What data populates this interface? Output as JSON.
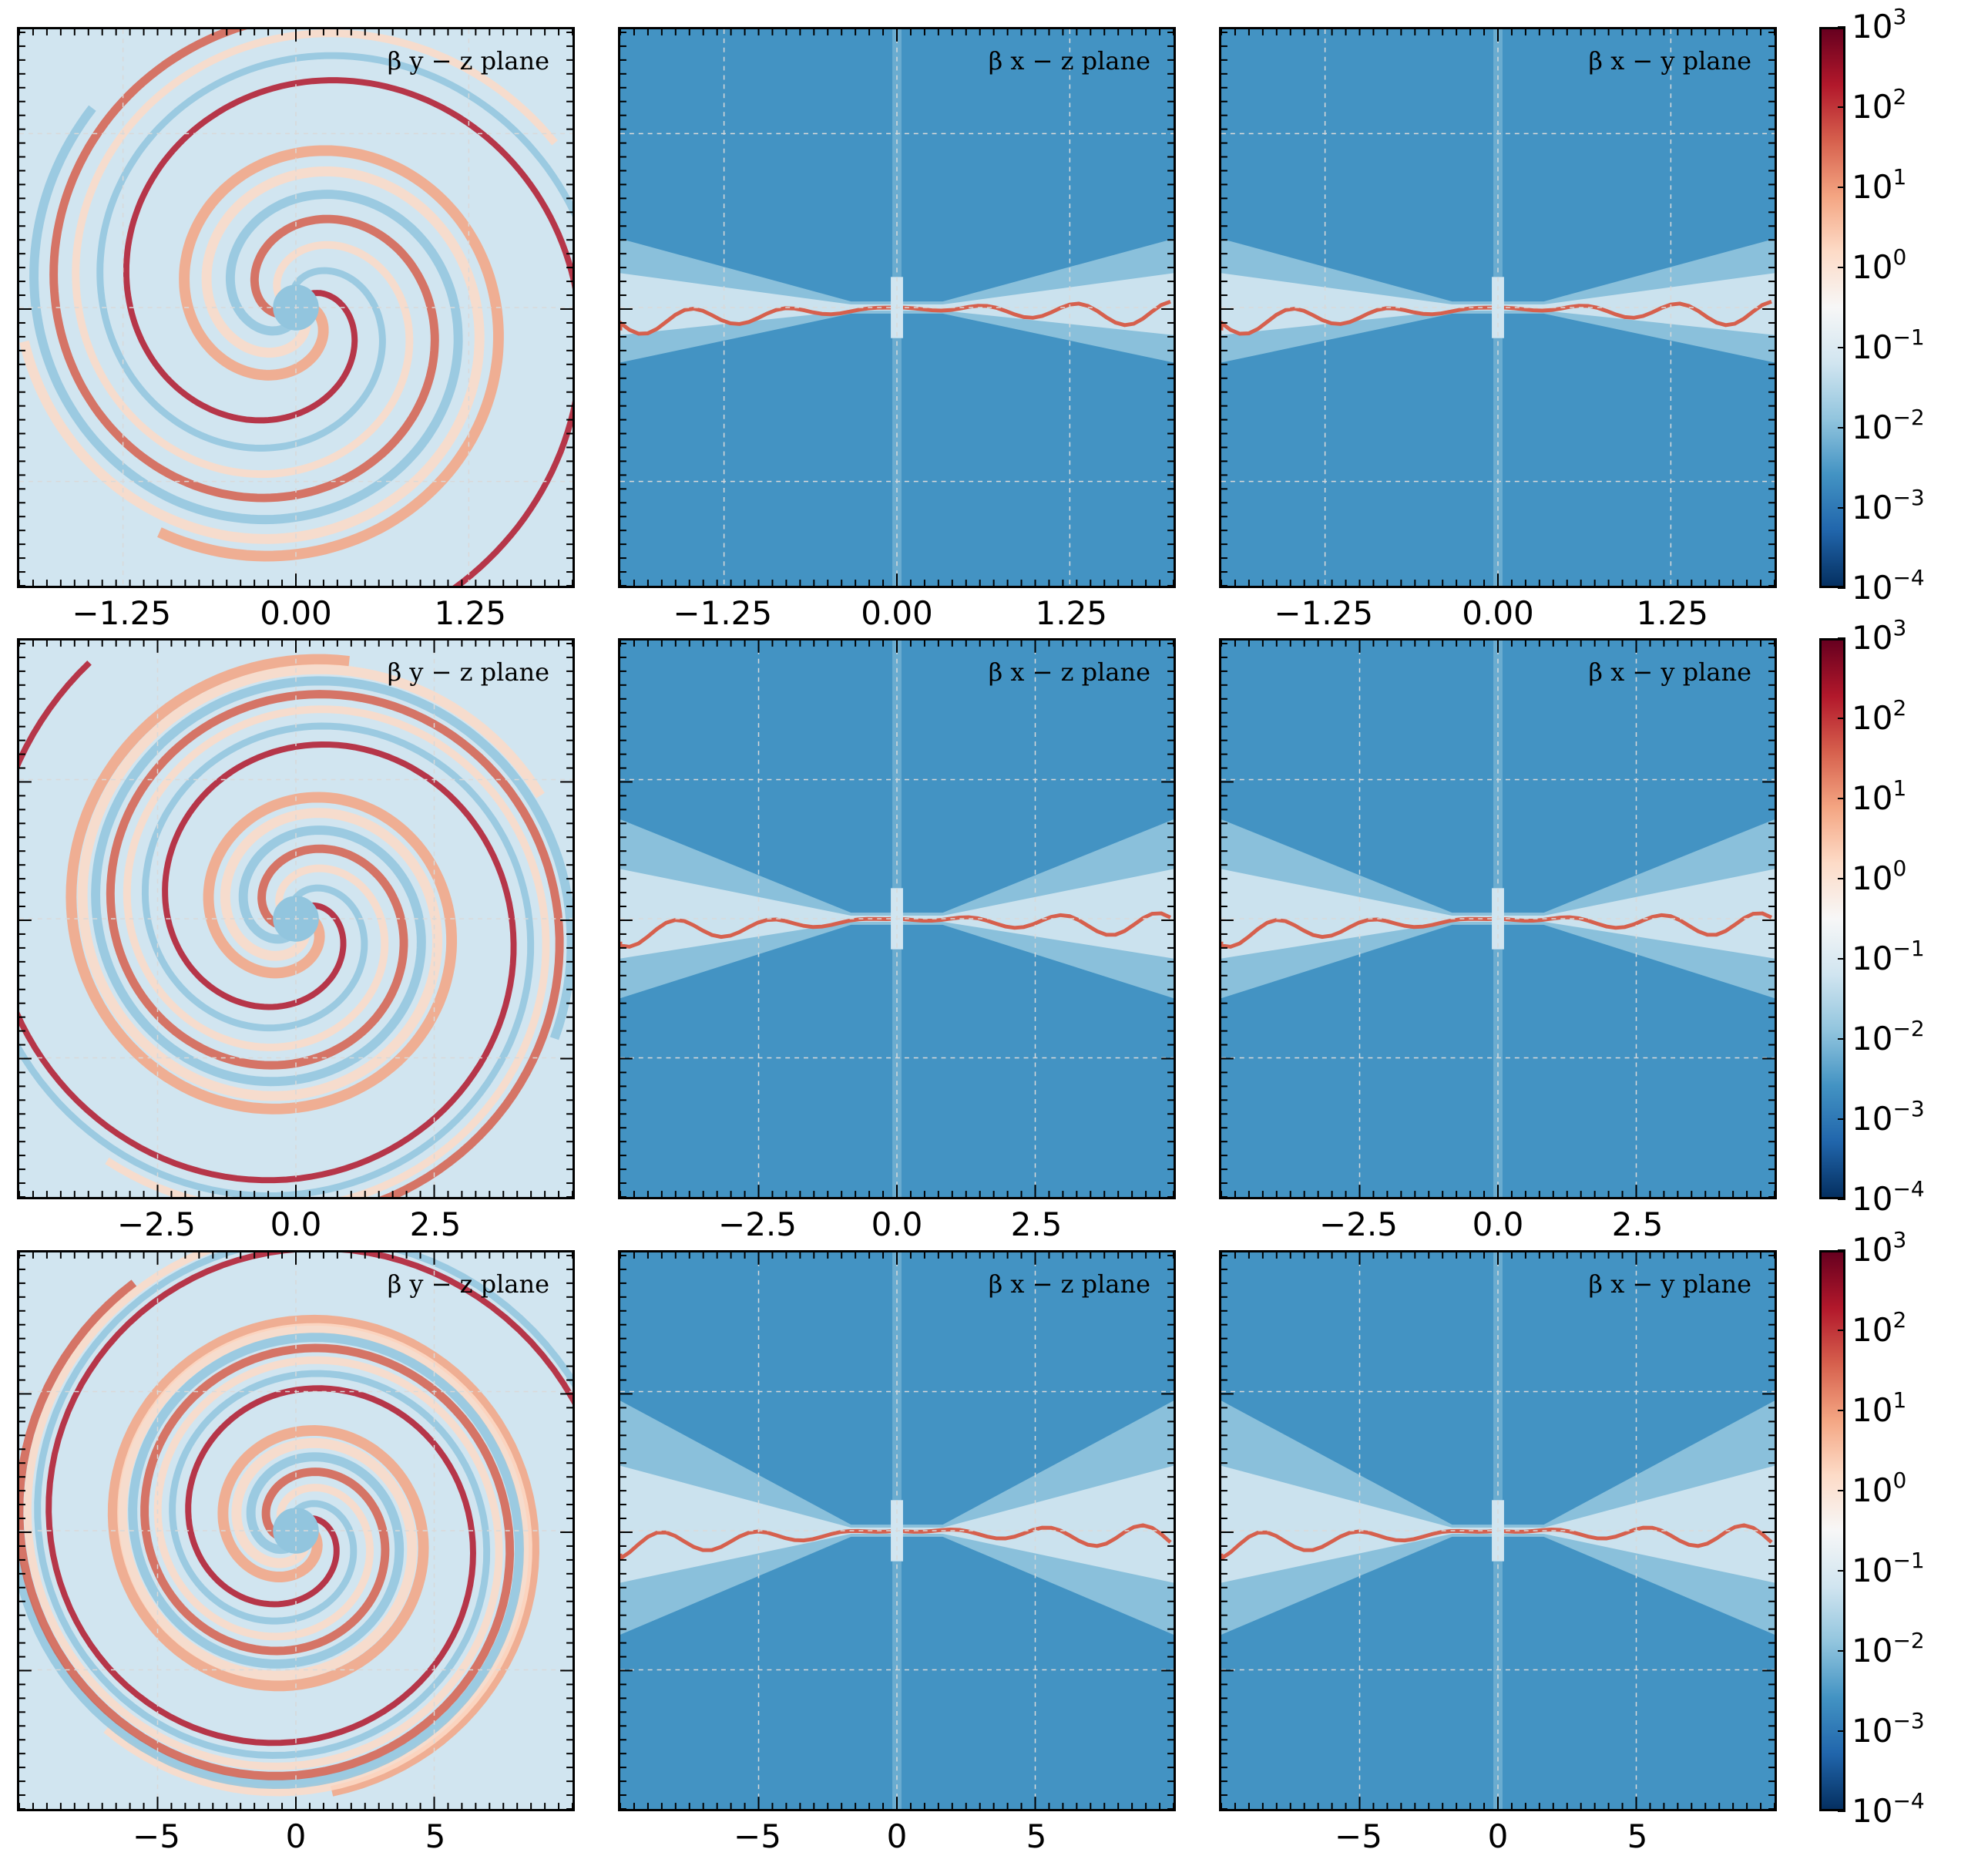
{
  "colorbar": {
    "scale": "log",
    "range": [
      0.0001,
      1000.0
    ],
    "ticks": [
      {
        "base": "10",
        "exp": "3"
      },
      {
        "base": "10",
        "exp": "2"
      },
      {
        "base": "10",
        "exp": "1"
      },
      {
        "base": "10",
        "exp": "0"
      },
      {
        "base": "10",
        "exp": "−1"
      },
      {
        "base": "10",
        "exp": "−2"
      },
      {
        "base": "10",
        "exp": "−3"
      },
      {
        "base": "10",
        "exp": "−4"
      }
    ],
    "colormap": [
      "#053061",
      "#2166ac",
      "#4393c3",
      "#92c5de",
      "#d1e5f0",
      "#f7f7f7",
      "#fddbc7",
      "#f4a582",
      "#d6604d",
      "#b2182b",
      "#67001f"
    ]
  },
  "chart_data": [
    {
      "type": "heatmap",
      "label": "β y − z plane",
      "xlim": [
        -2.0,
        2.0
      ],
      "xticks": [
        "−1.25",
        "0.00",
        "1.25"
      ],
      "xtick_values": [
        -1.25,
        0,
        1.25
      ],
      "view": "face-on"
    },
    {
      "type": "heatmap",
      "label": "β x − z plane",
      "xlim": [
        -2.0,
        2.0
      ],
      "xticks": [
        "−1.25",
        "0.00",
        "1.25"
      ],
      "xtick_values": [
        -1.25,
        0,
        1.25
      ],
      "view": "edge-on"
    },
    {
      "type": "heatmap",
      "label": "β x − y plane",
      "xlim": [
        -2.0,
        2.0
      ],
      "xticks": [
        "−1.25",
        "0.00",
        "1.25"
      ],
      "xtick_values": [
        -1.25,
        0,
        1.25
      ],
      "view": "edge-on"
    },
    {
      "type": "heatmap",
      "label": "β y − z plane",
      "xlim": [
        -5.0,
        5.0
      ],
      "xticks": [
        "−2.5",
        "0.0",
        "2.5"
      ],
      "xtick_values": [
        -2.5,
        0,
        2.5
      ],
      "view": "face-on"
    },
    {
      "type": "heatmap",
      "label": "β x − z plane",
      "xlim": [
        -5.0,
        5.0
      ],
      "xticks": [
        "−2.5",
        "0.0",
        "2.5"
      ],
      "xtick_values": [
        -2.5,
        0,
        2.5
      ],
      "view": "edge-on"
    },
    {
      "type": "heatmap",
      "label": "β x − y plane",
      "xlim": [
        -5.0,
        5.0
      ],
      "xticks": [
        "−2.5",
        "0.0",
        "2.5"
      ],
      "xtick_values": [
        -2.5,
        0,
        2.5
      ],
      "view": "edge-on"
    },
    {
      "type": "heatmap",
      "label": "β y − z plane",
      "xlim": [
        -10.0,
        10.0
      ],
      "xticks": [
        "−5",
        "0",
        "5"
      ],
      "xtick_values": [
        -5,
        0,
        5
      ],
      "view": "face-on"
    },
    {
      "type": "heatmap",
      "label": "β x − z plane",
      "xlim": [
        -10.0,
        10.0
      ],
      "xticks": [
        "−5",
        "0",
        "5"
      ],
      "xtick_values": [
        -5,
        0,
        5
      ],
      "view": "edge-on"
    },
    {
      "type": "heatmap",
      "label": "β x − y plane",
      "xlim": [
        -10.0,
        10.0
      ],
      "xticks": [
        "−5",
        "0",
        "5"
      ],
      "xtick_values": [
        -5,
        0,
        5
      ],
      "view": "edge-on"
    }
  ]
}
